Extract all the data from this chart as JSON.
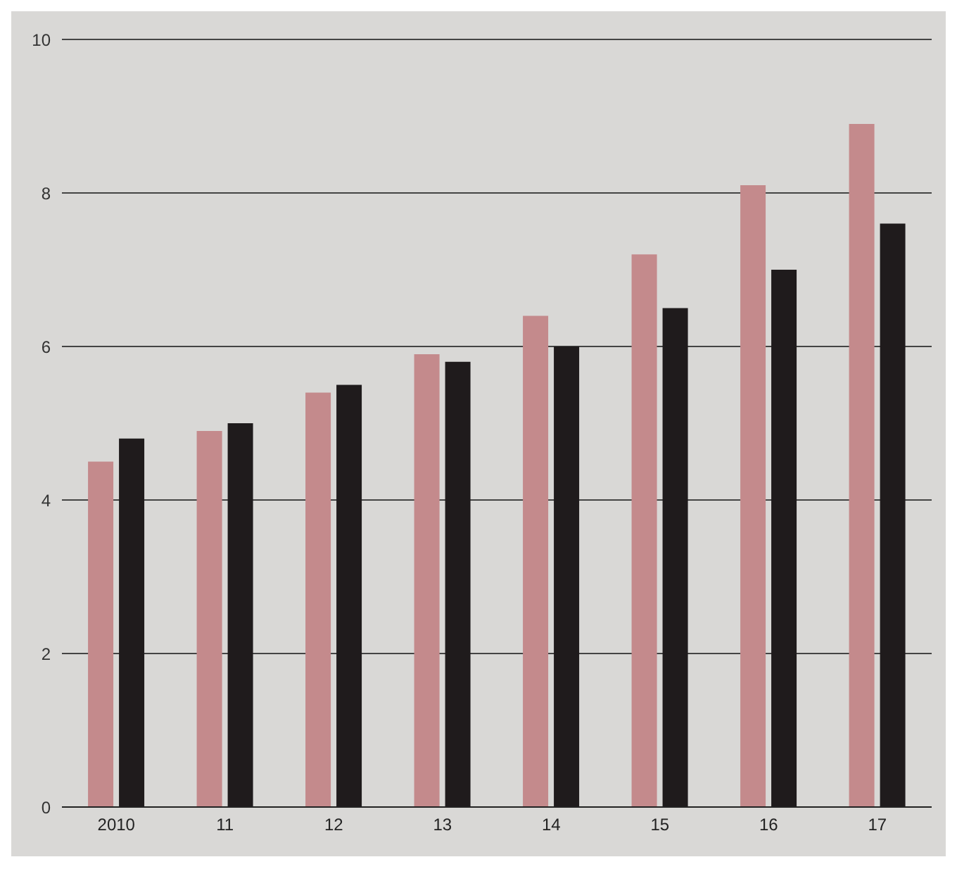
{
  "chart_data": {
    "type": "bar",
    "categories": [
      "2010",
      "11",
      "12",
      "13",
      "14",
      "15",
      "16",
      "17"
    ],
    "series": [
      {
        "color": "#c48a8c",
        "values": [
          4.5,
          4.9,
          5.4,
          5.9,
          6.4,
          7.2,
          8.1,
          8.9
        ]
      },
      {
        "color": "#1f1b1c",
        "values": [
          4.8,
          5.0,
          5.5,
          5.8,
          6.0,
          6.5,
          7.0,
          7.6
        ]
      }
    ],
    "ylim": [
      0,
      10
    ],
    "yticks": [
      0,
      2,
      4,
      6,
      8,
      10
    ],
    "grid": "y"
  }
}
